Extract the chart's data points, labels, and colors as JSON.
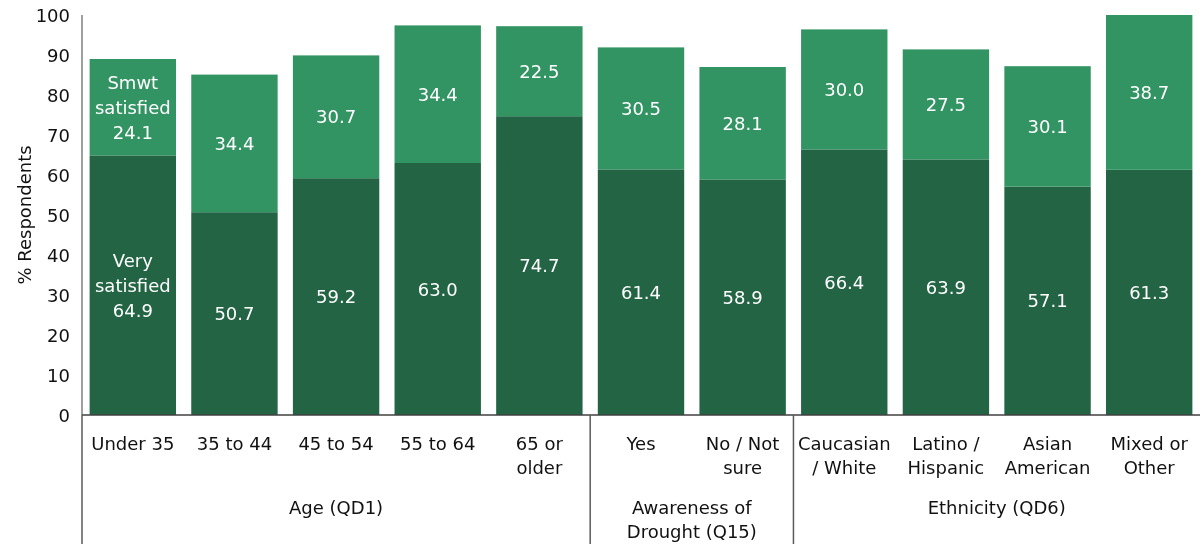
{
  "chart_data": {
    "type": "bar",
    "stacked": true,
    "ylabel": "% Respondents",
    "categories": [
      "Under 35",
      "35 to 44",
      "45 to 54",
      "55 to 64",
      "65 or older",
      "Yes",
      "No / Not sure",
      "Caucasian / White",
      "Latino / Hispanic",
      "Asian American",
      "Mixed or Other"
    ],
    "series": [
      {
        "name": "Very satisfied",
        "color": "#226443",
        "values": [
          64.9,
          50.7,
          59.2,
          63.0,
          74.7,
          61.4,
          58.9,
          66.4,
          63.9,
          57.1,
          61.3
        ],
        "value_labels": [
          "64.9",
          "50.7",
          "59.2",
          "63.0",
          "74.7",
          "61.4",
          "58.9",
          "66.4",
          "63.9",
          "57.1",
          "61.3"
        ]
      },
      {
        "name": "Smwt satisfied",
        "color": "#339463",
        "values": [
          24.1,
          34.4,
          30.7,
          34.4,
          22.5,
          30.5,
          28.1,
          30.0,
          27.5,
          30.1,
          38.7
        ],
        "value_labels": [
          "24.1",
          "34.4",
          "30.7",
          "34.4",
          "22.5",
          "30.5",
          "28.1",
          "30.0",
          "27.5",
          "30.1",
          "38.7"
        ]
      }
    ],
    "ylim": [
      0,
      100
    ],
    "yticks": [
      0,
      10,
      20,
      30,
      40,
      50,
      60,
      70,
      80,
      90,
      100
    ],
    "annotations": [
      "Age (QD1)",
      "Awareness of Drought (Q15)",
      "Ethnicity (QD6)"
    ]
  }
}
